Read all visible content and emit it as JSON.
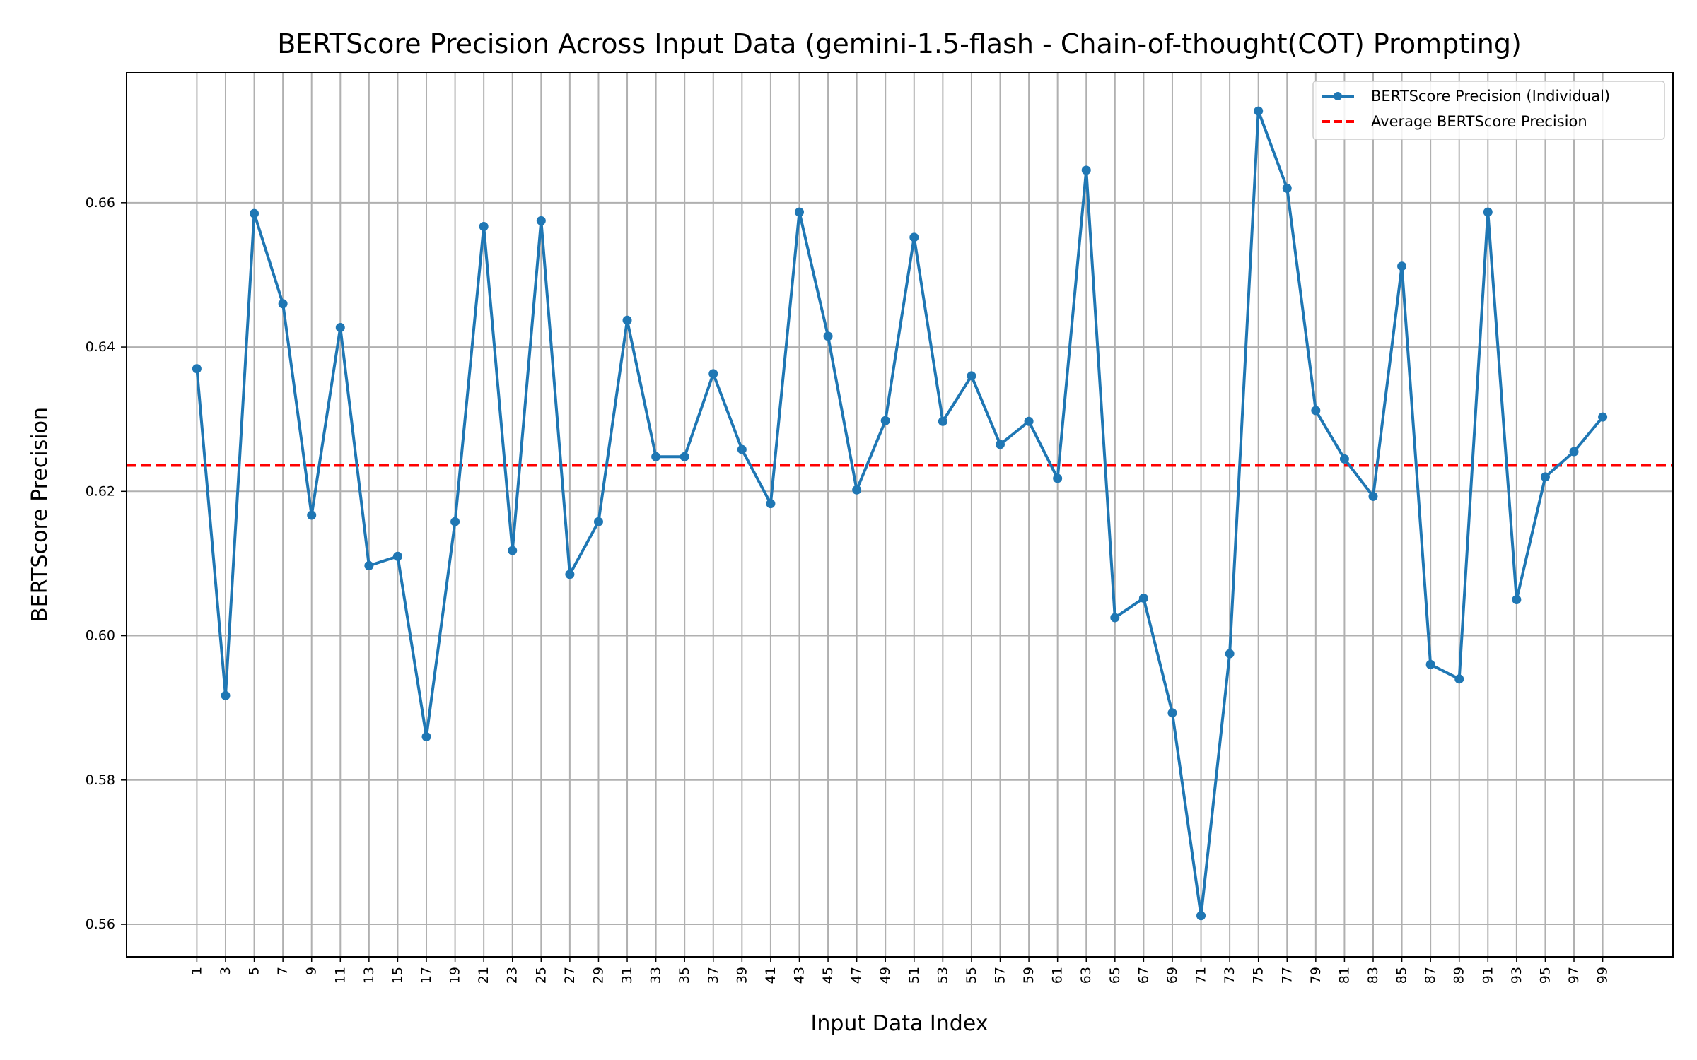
{
  "chart_data": {
    "type": "line",
    "title": "BERTScore Precision Across Input Data (gemini-1.5-flash - Chain-of-thought(COT) Prompting)",
    "xlabel": "Input Data Index",
    "ylabel": "BERTScore Precision",
    "xlim": [
      -3.9,
      103.9
    ],
    "ylim": [
      0.5555,
      0.678
    ],
    "x_ticks": [
      1,
      3,
      5,
      7,
      9,
      11,
      13,
      15,
      17,
      19,
      21,
      23,
      25,
      27,
      29,
      31,
      33,
      35,
      37,
      39,
      41,
      43,
      45,
      47,
      49,
      51,
      53,
      55,
      57,
      59,
      61,
      63,
      65,
      67,
      69,
      71,
      73,
      75,
      77,
      79,
      81,
      83,
      85,
      87,
      89,
      91,
      93,
      95,
      97,
      99
    ],
    "x_tick_labels": [
      "1",
      "3",
      "5",
      "7",
      "9",
      "11",
      "13",
      "15",
      "17",
      "19",
      "21",
      "23",
      "25",
      "27",
      "29",
      "31",
      "33",
      "35",
      "37",
      "39",
      "41",
      "43",
      "45",
      "47",
      "49",
      "51",
      "53",
      "55",
      "57",
      "59",
      "61",
      "63",
      "65",
      "67",
      "69",
      "71",
      "73",
      "75",
      "77",
      "79",
      "81",
      "83",
      "85",
      "87",
      "89",
      "91",
      "93",
      "95",
      "97",
      "99"
    ],
    "y_ticks": [
      0.56,
      0.58,
      0.6,
      0.62,
      0.64,
      0.66
    ],
    "y_tick_labels": [
      "0.56",
      "0.58",
      "0.60",
      "0.62",
      "0.64",
      "0.66"
    ],
    "grid": true,
    "legend_position": "top-right",
    "series": [
      {
        "name": "BERTScore Precision (Individual)",
        "style": "line-marker",
        "color": "#1f77b4",
        "x": [
          1,
          3,
          5,
          7,
          9,
          11,
          13,
          15,
          17,
          19,
          21,
          23,
          25,
          27,
          29,
          31,
          33,
          35,
          37,
          39,
          41,
          43,
          45,
          47,
          49,
          51,
          53,
          55,
          57,
          59,
          61,
          63,
          65,
          67,
          69,
          71,
          73,
          75,
          77,
          79,
          81,
          83,
          85,
          87,
          89,
          91,
          93,
          95,
          97,
          99
        ],
        "values": [
          0.637,
          0.5917,
          0.6585,
          0.646,
          0.6167,
          0.6427,
          0.6097,
          0.611,
          0.586,
          0.6158,
          0.6567,
          0.6118,
          0.6575,
          0.6085,
          0.6158,
          0.6437,
          0.6248,
          0.6248,
          0.6363,
          0.6258,
          0.6183,
          0.6587,
          0.6415,
          0.6202,
          0.6298,
          0.6552,
          0.6297,
          0.636,
          0.6265,
          0.6297,
          0.6218,
          0.6645,
          0.6025,
          0.6052,
          0.5893,
          0.5612,
          0.5975,
          0.6727,
          0.662,
          0.6312,
          0.6245,
          0.6193,
          0.6512,
          0.596,
          0.594,
          0.6587,
          0.605,
          0.622,
          0.6255,
          0.6303
        ]
      },
      {
        "name": "Average BERTScore Precision",
        "style": "dashed",
        "color": "#ff0000",
        "y": 0.6236
      }
    ]
  }
}
